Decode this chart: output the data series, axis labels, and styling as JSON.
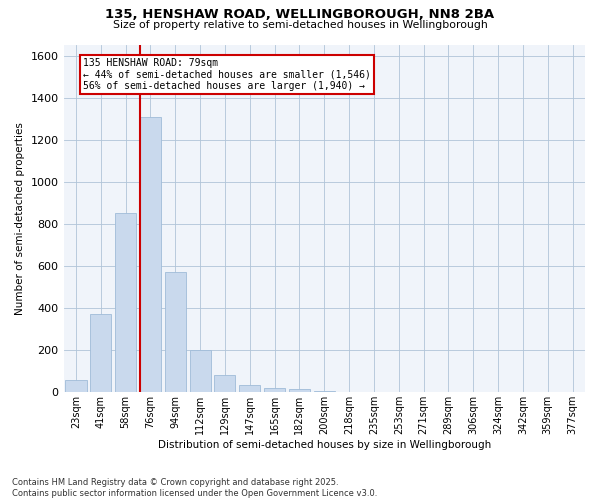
{
  "title_line1": "135, HENSHAW ROAD, WELLINGBOROUGH, NN8 2BA",
  "title_line2": "Size of property relative to semi-detached houses in Wellingborough",
  "xlabel": "Distribution of semi-detached houses by size in Wellingborough",
  "ylabel": "Number of semi-detached properties",
  "footer_line1": "Contains HM Land Registry data © Crown copyright and database right 2025.",
  "footer_line2": "Contains public sector information licensed under the Open Government Licence v3.0.",
  "property_label": "135 HENSHAW ROAD: 79sqm",
  "annotation_left": "← 44% of semi-detached houses are smaller (1,546)",
  "annotation_right": "56% of semi-detached houses are larger (1,940) →",
  "bar_color": "#c9d9ed",
  "bar_edge_color": "#a0bcd8",
  "marker_color": "#cc0000",
  "categories": [
    "23sqm",
    "41sqm",
    "58sqm",
    "76sqm",
    "94sqm",
    "112sqm",
    "129sqm",
    "147sqm",
    "165sqm",
    "182sqm",
    "200sqm",
    "218sqm",
    "235sqm",
    "253sqm",
    "271sqm",
    "289sqm",
    "306sqm",
    "324sqm",
    "342sqm",
    "359sqm",
    "377sqm"
  ],
  "values": [
    60,
    370,
    850,
    1310,
    570,
    200,
    80,
    35,
    20,
    15,
    5,
    3,
    1,
    0,
    0,
    0,
    0,
    0,
    0,
    0,
    0
  ],
  "ylim": [
    0,
    1650
  ],
  "yticks": [
    0,
    200,
    400,
    600,
    800,
    1000,
    1200,
    1400,
    1600
  ],
  "red_line_bar_index": 3,
  "box_color": "#ffffff",
  "box_edge_color": "#cc0000",
  "bg_color": "#f0f4fa"
}
